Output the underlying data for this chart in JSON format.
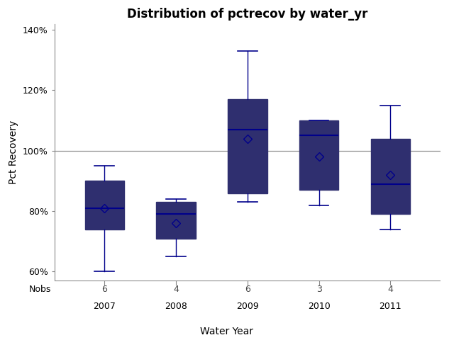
{
  "title": "Distribution of pctrecov by water_yr",
  "xlabel": "Water Year",
  "ylabel": "Pct Recovery",
  "categories": [
    "2007",
    "2008",
    "2009",
    "2010",
    "2011"
  ],
  "nobs": [
    6,
    4,
    6,
    3,
    4
  ],
  "box_data": {
    "2007": {
      "whislo": 60,
      "q1": 74,
      "median": 81,
      "q3": 90,
      "whishi": 95,
      "mean": 81
    },
    "2008": {
      "whislo": 65,
      "q1": 71,
      "median": 79,
      "q3": 83,
      "whishi": 84,
      "mean": 76
    },
    "2009": {
      "whislo": 83,
      "q1": 86,
      "median": 107,
      "q3": 117,
      "whishi": 133,
      "mean": 104
    },
    "2010": {
      "whislo": 82,
      "q1": 87,
      "median": 105,
      "q3": 110,
      "whishi": 110,
      "mean": 98
    },
    "2011": {
      "whislo": 74,
      "q1": 79,
      "median": 89,
      "q3": 104,
      "whishi": 115,
      "mean": 92
    }
  },
  "box_color": "#c8d4e3",
  "median_color": "#00008b",
  "whisker_color": "#00008b",
  "cap_color": "#00008b",
  "box_edge_color": "#2f2f6f",
  "mean_marker_color": "#00008b",
  "ref_line_y": 100,
  "ref_line_color": "#909090",
  "ylim": [
    57,
    142
  ],
  "yticks": [
    60,
    80,
    100,
    120,
    140
  ],
  "yticklabels": [
    "60%",
    "80%",
    "100%",
    "120%",
    "140%"
  ],
  "background_color": "#ffffff",
  "title_fontsize": 12,
  "label_fontsize": 10,
  "tick_fontsize": 9,
  "nobs_fontsize": 9,
  "box_width": 0.55
}
